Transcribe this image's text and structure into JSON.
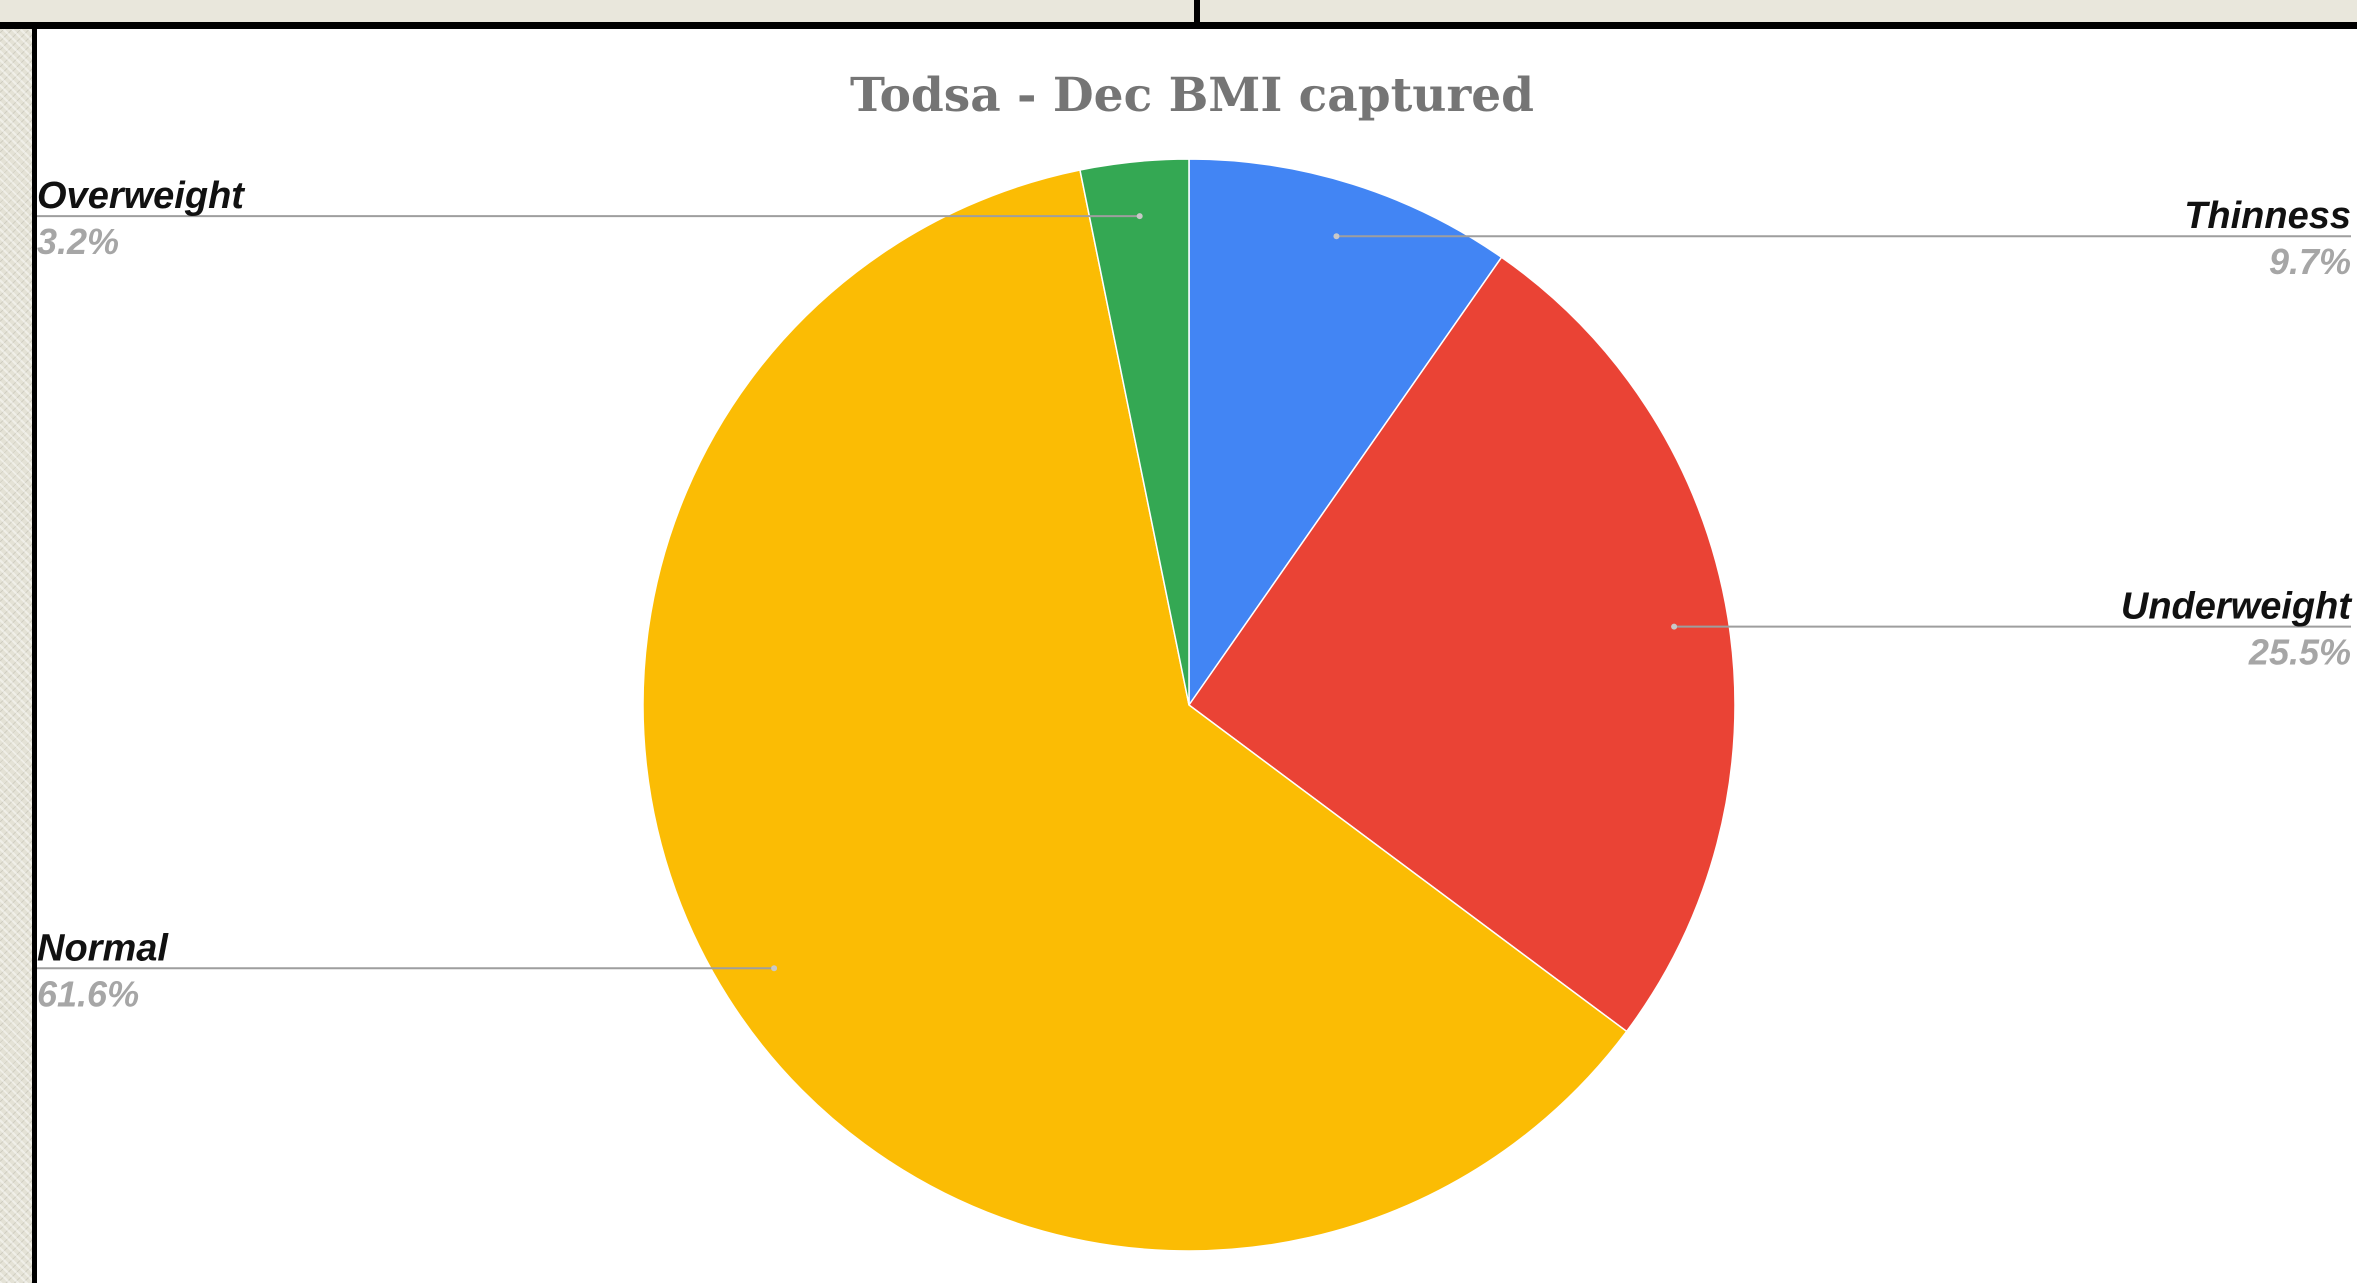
{
  "chart_data": {
    "type": "pie",
    "title": "Todsa - Dec BMI captured",
    "slices": [
      {
        "label": "Thinness",
        "value": 9.7,
        "pct_label": "9.7%",
        "color": "#4285f4",
        "label_side": "right"
      },
      {
        "label": "Underweight",
        "value": 25.5,
        "pct_label": "25.5%",
        "color": "#ea4335",
        "label_side": "right"
      },
      {
        "label": "Normal",
        "value": 61.6,
        "pct_label": "61.6%",
        "color": "#fbbc04",
        "label_side": "left"
      },
      {
        "label": "Overweight",
        "value": 3.2,
        "pct_label": "3.2%",
        "color": "#34a853",
        "label_side": "left"
      }
    ],
    "start_angle": "12 o'clock",
    "direction": "clockwise",
    "legend": "none"
  }
}
